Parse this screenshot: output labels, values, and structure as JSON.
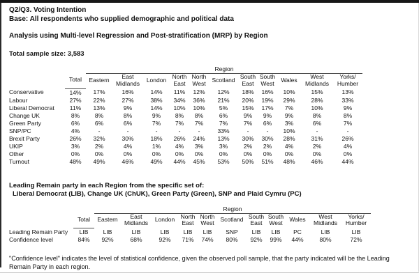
{
  "header": {
    "line1": "Q2/Q3. Voting Intention",
    "line2": "Base: All respondents who supplied demographic and political data",
    "analysis": "Analysis using Multi-level Regression and Post-stratification (MRP) by Region",
    "sample_size": "Total sample size: 3,583"
  },
  "table1": {
    "region_label": "Region",
    "columns": [
      "Total",
      "Eastern",
      "East\nMidlands",
      "London",
      "North\nEast",
      "North\nWest",
      "Scotland",
      "South\nEast",
      "South\nWest",
      "Wales",
      "West\nMidlands",
      "Yorks/\nHumber"
    ],
    "rows": [
      {
        "label": "Conservative",
        "values": [
          "14%",
          "17%",
          "16%",
          "14%",
          "11%",
          "12%",
          "12%",
          "18%",
          "16%",
          "10%",
          "15%",
          "13%"
        ]
      },
      {
        "label": "Labour",
        "values": [
          "27%",
          "22%",
          "27%",
          "38%",
          "34%",
          "36%",
          "21%",
          "20%",
          "19%",
          "29%",
          "28%",
          "33%"
        ]
      },
      {
        "label": "Liberal Democrat",
        "values": [
          "11%",
          "13%",
          "9%",
          "14%",
          "10%",
          "10%",
          "5%",
          "15%",
          "17%",
          "7%",
          "10%",
          "9%"
        ]
      },
      {
        "label": "Change UK",
        "values": [
          "8%",
          "8%",
          "8%",
          "9%",
          "8%",
          "8%",
          "6%",
          "9%",
          "9%",
          "9%",
          "8%",
          "8%"
        ]
      },
      {
        "label": "Green Party",
        "values": [
          "6%",
          "6%",
          "6%",
          "7%",
          "7%",
          "7%",
          "7%",
          "7%",
          "6%",
          "3%",
          "6%",
          "7%"
        ]
      },
      {
        "label": "SNP/PC",
        "values": [
          "4%",
          "-",
          "-",
          "-",
          "-",
          "-",
          "33%",
          "-",
          "-",
          "10%",
          "-",
          "-"
        ]
      },
      {
        "label": "Brexit Party",
        "values": [
          "26%",
          "32%",
          "30%",
          "18%",
          "26%",
          "24%",
          "13%",
          "30%",
          "30%",
          "28%",
          "31%",
          "26%"
        ]
      },
      {
        "label": "UKIP",
        "values": [
          "3%",
          "2%",
          "4%",
          "1%",
          "4%",
          "3%",
          "3%",
          "2%",
          "2%",
          "4%",
          "2%",
          "4%"
        ]
      },
      {
        "label": "Other",
        "values": [
          "0%",
          "0%",
          "0%",
          "0%",
          "0%",
          "0%",
          "0%",
          "0%",
          "0%",
          "0%",
          "0%",
          "0%"
        ]
      },
      {
        "label": "Turnout",
        "values": [
          "48%",
          "49%",
          "46%",
          "49%",
          "44%",
          "45%",
          "53%",
          "50%",
          "51%",
          "48%",
          "46%",
          "44%"
        ]
      }
    ]
  },
  "remain_note": {
    "line1": "Leading Remain party in each Region from the specific set of:",
    "line2": "Liberal Democrat (LIB), Change UK (ChUK), Green Party (Green), SNP and Plaid Cymru (PC)"
  },
  "table2": {
    "region_label": "Region",
    "columns": [
      "Total",
      "Eastern",
      "East\nMidlands",
      "London",
      "North\nEast",
      "North\nWest",
      "Scotland",
      "South\nEast",
      "South\nWest",
      "Wales",
      "West\nMidlands",
      "Yorks/\nHumber"
    ],
    "rows": [
      {
        "label": "Leading Remain Party",
        "values": [
          "LIB",
          "LIB",
          "LIB",
          "LIB",
          "LIB",
          "LIB",
          "SNP",
          "LIB",
          "LIB",
          "PC",
          "LIB",
          "LIB"
        ]
      },
      {
        "label": "Confidence level",
        "values": [
          "84%",
          "92%",
          "68%",
          "92%",
          "71%",
          "74%",
          "80%",
          "92%",
          "99%",
          "44%",
          "80%",
          "72%"
        ]
      }
    ]
  },
  "footnote": "\"Confidence level\" indicates the level of statistical confidence, given the observed poll sample, that the party indicated will be the Leading Remain Party in each region."
}
